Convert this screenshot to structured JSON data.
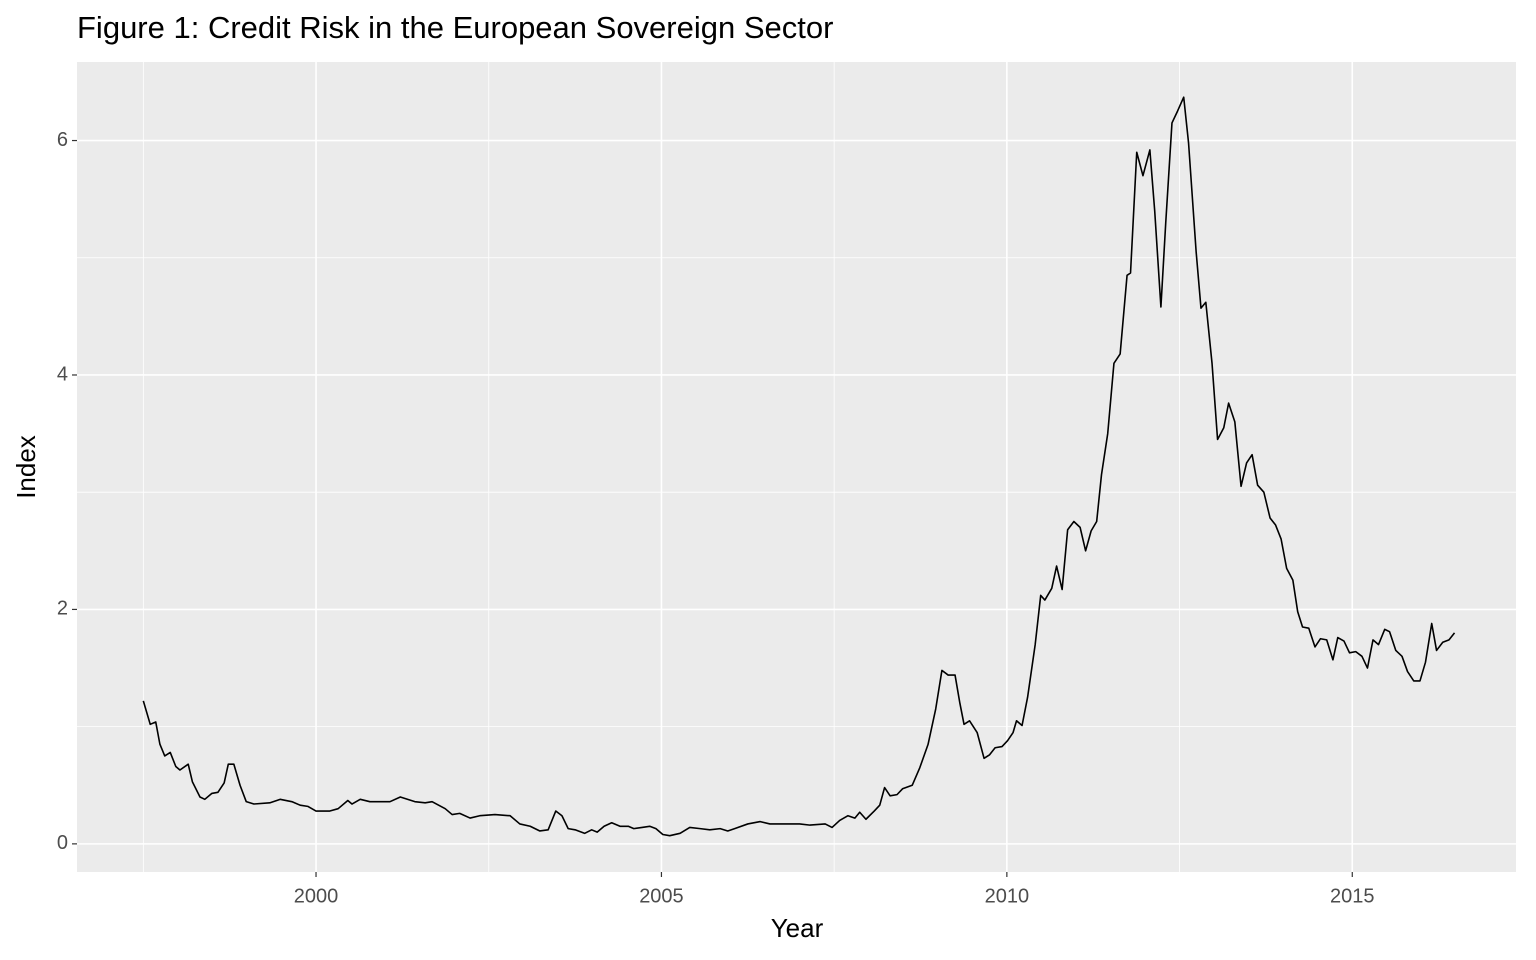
{
  "chart_data": {
    "type": "line",
    "title": "Figure 1: Credit Risk in the European Sovereign Sector",
    "x_label": "Year",
    "y_label": "Index",
    "xlim": [
      1996.54,
      2017.37
    ],
    "ylim": [
      -0.24,
      6.67
    ],
    "xticks": [
      2000,
      2005,
      2010,
      2015
    ],
    "yticks": [
      0,
      2,
      4,
      6
    ],
    "xminor": [
      1997.5,
      2002.5,
      2007.5,
      2012.5,
      2017.5
    ],
    "yminor": [
      1,
      3,
      5
    ],
    "grid": true,
    "series": [
      {
        "color": "#000000",
        "x": [
          1997.5,
          1997.6,
          1997.68,
          1997.74,
          1997.81,
          1997.89,
          1997.97,
          1998.03,
          1998.15,
          1998.21,
          1998.32,
          1998.39,
          1998.49,
          1998.58,
          1998.67,
          1998.73,
          1998.81,
          1998.9,
          1998.99,
          1999.1,
          1999.33,
          1999.48,
          1999.65,
          1999.77,
          1999.88,
          2000.0,
          2000.2,
          2000.32,
          2000.46,
          2000.52,
          2000.64,
          2000.78,
          2001.07,
          2001.22,
          2001.43,
          2001.58,
          2001.68,
          2001.87,
          2001.97,
          2002.08,
          2002.23,
          2002.37,
          2002.59,
          2002.81,
          2002.95,
          2003.1,
          2003.24,
          2003.36,
          2003.47,
          2003.56,
          2003.65,
          2003.75,
          2003.89,
          2003.99,
          2004.07,
          2004.17,
          2004.28,
          2004.4,
          2004.52,
          2004.6,
          2004.72,
          2004.83,
          2004.92,
          2005.02,
          2005.12,
          2005.27,
          2005.41,
          2005.56,
          2005.7,
          2005.85,
          2005.96,
          2006.06,
          2006.25,
          2006.43,
          2006.57,
          2006.79,
          2007.0,
          2007.15,
          2007.37,
          2007.47,
          2007.58,
          2007.7,
          2007.8,
          2007.87,
          2007.96,
          2008.08,
          2008.16,
          2008.23,
          2008.31,
          2008.41,
          2008.49,
          2008.63,
          2008.74,
          2008.86,
          2008.97,
          2009.06,
          2009.15,
          2009.25,
          2009.32,
          2009.38,
          2009.46,
          2009.57,
          2009.67,
          2009.75,
          2009.83,
          2009.93,
          2010.01,
          2010.09,
          2010.14,
          2010.22,
          2010.3,
          2010.41,
          2010.49,
          2010.55,
          2010.65,
          2010.72,
          2010.8,
          2010.88,
          2010.97,
          2011.06,
          2011.14,
          2011.22,
          2011.3,
          2011.37,
          2011.46,
          2011.55,
          2011.64,
          2011.74,
          2011.79,
          2011.88,
          2011.97,
          2012.07,
          2012.14,
          2012.23,
          2012.3,
          2012.39,
          2012.47,
          2012.56,
          2012.63,
          2012.74,
          2012.81,
          2012.88,
          2012.97,
          2013.05,
          2013.14,
          2013.21,
          2013.3,
          2013.39,
          2013.47,
          2013.55,
          2013.63,
          2013.72,
          2013.81,
          2013.89,
          2013.97,
          2014.05,
          2014.14,
          2014.21,
          2014.28,
          2014.37,
          2014.46,
          2014.54,
          2014.63,
          2014.72,
          2014.79,
          2014.88,
          2014.96,
          2015.05,
          2015.14,
          2015.22,
          2015.3,
          2015.38,
          2015.47,
          2015.54,
          2015.63,
          2015.72,
          2015.8,
          2015.89,
          2015.98,
          2016.06,
          2016.15,
          2016.22,
          2016.31,
          2016.4,
          2016.48
        ],
        "values": [
          1.22,
          1.02,
          1.04,
          0.85,
          0.75,
          0.78,
          0.66,
          0.63,
          0.68,
          0.53,
          0.4,
          0.38,
          0.43,
          0.44,
          0.52,
          0.68,
          0.68,
          0.5,
          0.36,
          0.34,
          0.35,
          0.38,
          0.36,
          0.33,
          0.32,
          0.28,
          0.28,
          0.3,
          0.37,
          0.34,
          0.38,
          0.36,
          0.36,
          0.4,
          0.36,
          0.35,
          0.36,
          0.3,
          0.25,
          0.26,
          0.22,
          0.24,
          0.25,
          0.24,
          0.17,
          0.15,
          0.11,
          0.12,
          0.28,
          0.24,
          0.13,
          0.12,
          0.09,
          0.12,
          0.1,
          0.15,
          0.18,
          0.15,
          0.15,
          0.13,
          0.14,
          0.15,
          0.13,
          0.08,
          0.07,
          0.09,
          0.14,
          0.13,
          0.12,
          0.13,
          0.11,
          0.13,
          0.17,
          0.19,
          0.17,
          0.17,
          0.17,
          0.16,
          0.17,
          0.14,
          0.2,
          0.24,
          0.22,
          0.27,
          0.21,
          0.28,
          0.33,
          0.48,
          0.41,
          0.42,
          0.47,
          0.5,
          0.65,
          0.85,
          1.15,
          1.48,
          1.44,
          1.44,
          1.2,
          1.02,
          1.05,
          0.95,
          0.73,
          0.76,
          0.82,
          0.83,
          0.88,
          0.95,
          1.05,
          1.01,
          1.25,
          1.7,
          2.12,
          2.08,
          2.18,
          2.37,
          2.17,
          2.68,
          2.75,
          2.7,
          2.5,
          2.67,
          2.75,
          3.15,
          3.5,
          4.1,
          4.18,
          4.85,
          4.87,
          5.9,
          5.7,
          5.92,
          5.4,
          4.58,
          5.3,
          6.15,
          6.25,
          6.37,
          5.98,
          5.05,
          4.57,
          4.62,
          4.1,
          3.45,
          3.55,
          3.76,
          3.6,
          3.05,
          3.25,
          3.32,
          3.06,
          3.0,
          2.78,
          2.72,
          2.6,
          2.35,
          2.25,
          1.98,
          1.85,
          1.84,
          1.68,
          1.75,
          1.74,
          1.57,
          1.76,
          1.73,
          1.63,
          1.64,
          1.6,
          1.5,
          1.74,
          1.7,
          1.83,
          1.81,
          1.65,
          1.6,
          1.47,
          1.39,
          1.39,
          1.55,
          1.88,
          1.65,
          1.72,
          1.74,
          1.8
        ]
      }
    ]
  }
}
